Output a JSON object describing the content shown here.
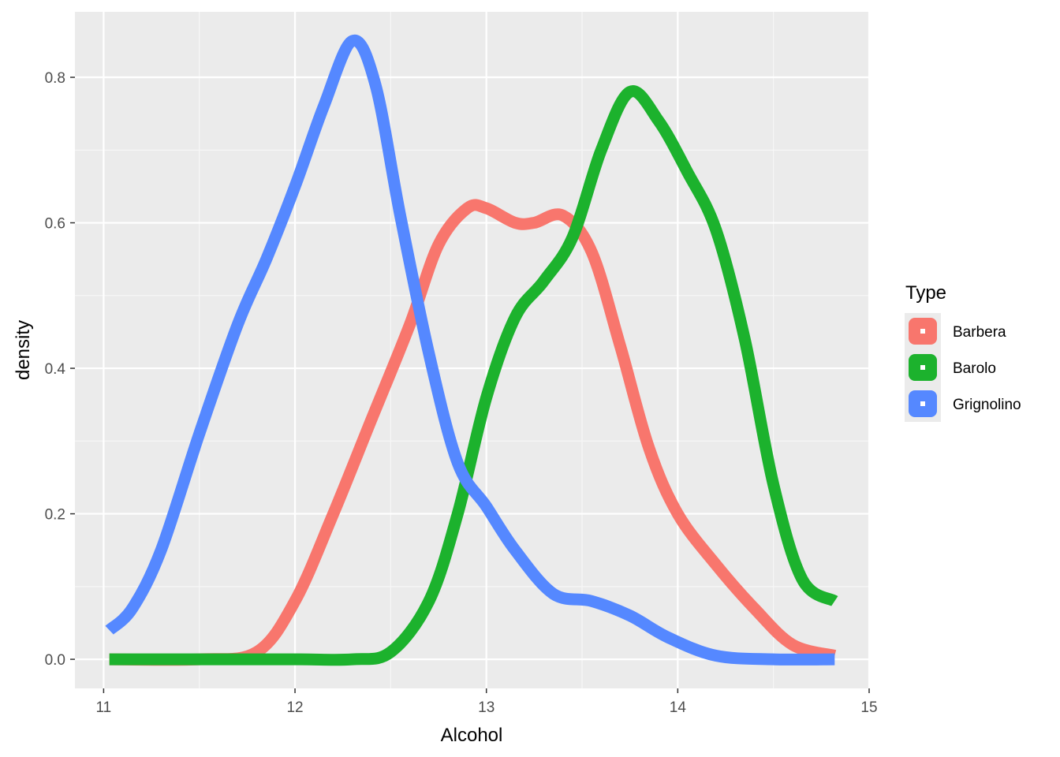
{
  "chart_data": {
    "type": "line",
    "title": "",
    "xlabel": "Alcohol",
    "ylabel": "density",
    "xlim": [
      10.85,
      15.0
    ],
    "ylim": [
      -0.04,
      0.89
    ],
    "x_ticks": [
      11,
      12,
      13,
      14,
      15
    ],
    "x_tick_labels": [
      "11",
      "12",
      "13",
      "14",
      "15"
    ],
    "y_ticks": [
      0.0,
      0.2,
      0.4,
      0.6,
      0.8
    ],
    "y_tick_labels": [
      "0.0",
      "0.2",
      "0.4",
      "0.6",
      "0.8"
    ],
    "grid": true,
    "legend": {
      "title": "Type",
      "position": "right"
    },
    "series": [
      {
        "name": "Barbera",
        "color": "#F8766D",
        "x": [
          11.03,
          11.5,
          11.8,
          12.0,
          12.2,
          12.4,
          12.6,
          12.75,
          12.9,
          13.0,
          13.15,
          13.25,
          13.4,
          13.55,
          13.7,
          13.85,
          14.0,
          14.2,
          14.4,
          14.6,
          14.82
        ],
        "y": [
          0.0,
          0.0,
          0.01,
          0.08,
          0.2,
          0.33,
          0.46,
          0.57,
          0.62,
          0.62,
          0.6,
          0.6,
          0.61,
          0.56,
          0.43,
          0.29,
          0.2,
          0.13,
          0.07,
          0.02,
          0.005
        ]
      },
      {
        "name": "Barolo",
        "color": "#1CB22D",
        "x": [
          11.03,
          11.5,
          12.0,
          12.3,
          12.5,
          12.7,
          12.85,
          13.0,
          13.15,
          13.3,
          13.45,
          13.6,
          13.75,
          13.9,
          14.05,
          14.2,
          14.35,
          14.5,
          14.65,
          14.82
        ],
        "y": [
          0.0,
          0.0,
          0.0,
          0.0,
          0.01,
          0.08,
          0.2,
          0.36,
          0.47,
          0.52,
          0.58,
          0.7,
          0.78,
          0.74,
          0.67,
          0.59,
          0.44,
          0.24,
          0.11,
          0.08
        ]
      },
      {
        "name": "Grignolino",
        "color": "#5588FF",
        "x": [
          11.03,
          11.15,
          11.3,
          11.5,
          11.7,
          11.85,
          12.0,
          12.15,
          12.3,
          12.42,
          12.55,
          12.7,
          12.85,
          13.0,
          13.15,
          13.35,
          13.55,
          13.75,
          13.95,
          14.2,
          14.5,
          14.82
        ],
        "y": [
          0.04,
          0.07,
          0.15,
          0.31,
          0.46,
          0.55,
          0.65,
          0.76,
          0.85,
          0.79,
          0.61,
          0.42,
          0.27,
          0.21,
          0.15,
          0.09,
          0.08,
          0.06,
          0.03,
          0.005,
          0.0,
          0.0
        ]
      }
    ]
  }
}
